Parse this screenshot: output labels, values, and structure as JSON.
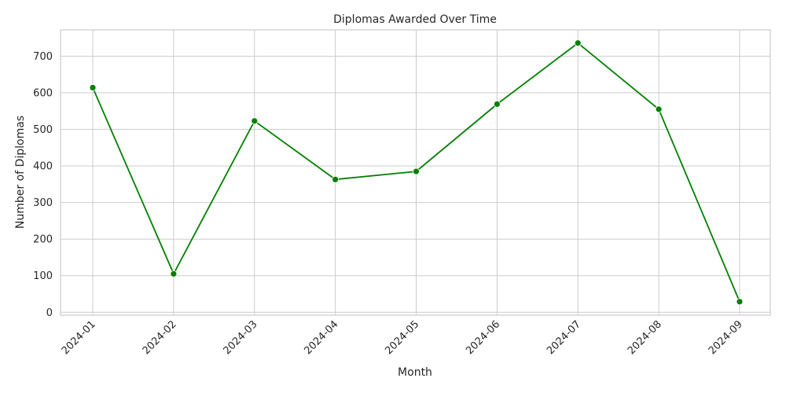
{
  "chart_data": {
    "type": "line",
    "title": "Diplomas Awarded Over Time",
    "xlabel": "Month",
    "ylabel": "Number of Diplomas",
    "categories": [
      "2024-01",
      "2024-02",
      "2024-03",
      "2024-04",
      "2024-05",
      "2024-06",
      "2024-07",
      "2024-08",
      "2024-09"
    ],
    "series": [
      {
        "values": [
          614,
          105,
          523,
          363,
          385,
          569,
          736,
          555,
          29
        ],
        "color": "#008000"
      }
    ],
    "yticks": [
      0,
      100,
      200,
      300,
      400,
      500,
      600,
      700
    ],
    "ylim": [
      -8,
      772
    ],
    "grid": true,
    "legend": "none"
  }
}
